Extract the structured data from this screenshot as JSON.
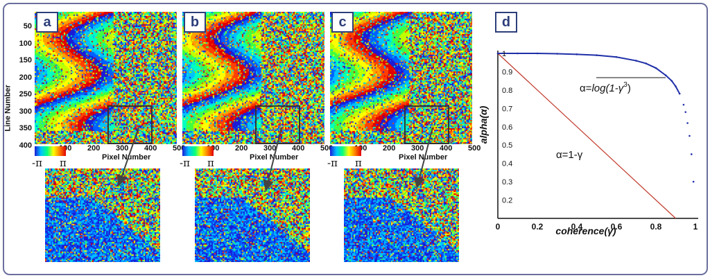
{
  "panels": {
    "a": "a",
    "b": "b",
    "c": "c",
    "d": "d"
  },
  "interferograms": {
    "y_axis_label": "Line Number",
    "x_axis_label": "Pixel Number",
    "y_ticks": [
      "50",
      "100",
      "150",
      "200",
      "250",
      "300",
      "350",
      "400"
    ],
    "x_ticks": [
      "100",
      "200",
      "300",
      "400",
      "500"
    ],
    "colorbar_min": "-π",
    "colorbar_max": "π"
  },
  "chart_data": {
    "type": "scatter",
    "xlabel": "coherence(γ)",
    "ylabel": "alpha(α)",
    "xlim": [
      0,
      1
    ],
    "ylim": [
      0.1,
      1
    ],
    "x_ticks": [
      "0",
      "0.2",
      "0.4",
      "0.6",
      "0.8",
      "1"
    ],
    "y_ticks": [
      "0.2",
      "0.3",
      "0.4",
      "0.5",
      "0.6",
      "0.7",
      "0.8",
      "0.9",
      "1"
    ],
    "annotations": [
      "α=1-γ"
    ],
    "annotation_log": {
      "prefix": "α=",
      "body": "log(1-γ",
      "power": "3",
      "suffix": ")"
    },
    "series": [
      {
        "type": "line",
        "color": "#c0392b",
        "x": [
          0,
          1
        ],
        "y": [
          1,
          0
        ]
      },
      {
        "type": "scatter",
        "color": "#1f2fa8",
        "x": [
          0,
          0.1,
          0.2,
          0.3,
          0.4,
          0.5,
          0.6,
          0.7,
          0.75,
          0.8,
          0.85,
          0.88,
          0.9,
          0.92,
          0.94,
          0.95,
          0.96,
          0.97,
          0.98,
          0.99
        ],
        "y": [
          1,
          1,
          1,
          0.998,
          0.995,
          0.99,
          0.98,
          0.96,
          0.945,
          0.92,
          0.88,
          0.85,
          0.82,
          0.78,
          0.72,
          0.68,
          0.62,
          0.55,
          0.45,
          0.3
        ]
      }
    ]
  }
}
